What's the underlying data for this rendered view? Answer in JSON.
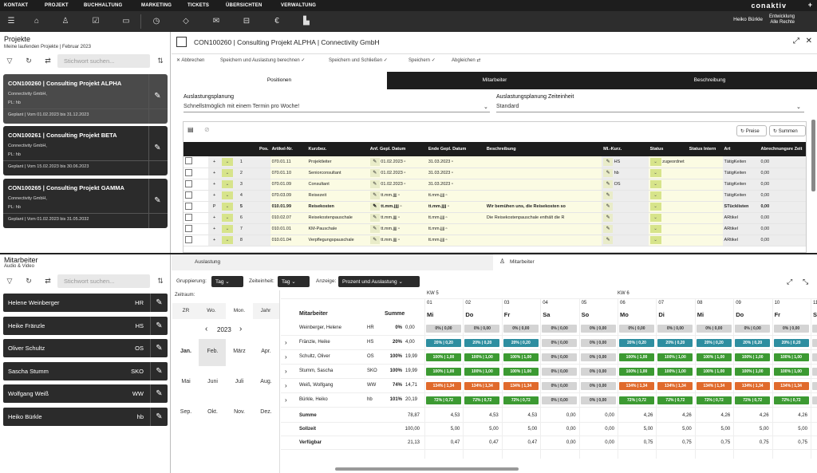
{
  "nav": {
    "items": [
      "KONTAKT",
      "PROJEKT",
      "BUCHHALTUNG",
      "MARKETING",
      "TICKETS",
      "ÜBERSICHTEN",
      "VERWALTUNG"
    ],
    "logo": "conaktiv"
  },
  "user": {
    "name": "Heiko Bürkle",
    "role1": "Entwicklung",
    "role2": "Alle Rechte"
  },
  "projects": {
    "title": "Projekte",
    "subtitle": "Meine laufenden Projekte | Februar 2023",
    "search_placeholder": "Stichwort suchen...",
    "items": [
      {
        "head": "CON100260 | Consulting Projekt ALPHA",
        "company": "Connectivity GmbH,",
        "pl": "PL: hb",
        "plan": "Geplant | Vom 01.02.2023 bis 31.12.2023"
      },
      {
        "head": "CON100261 | Consulting Projekt BETA",
        "company": "Connectivity GmbH,",
        "pl": "PL: hb",
        "plan": "Geplant | Vom 15.02.2023 bis 30.06.2023"
      },
      {
        "head": "CON100265 | Consulting Projekt GAMMA",
        "company": "Connectivity GmbH,",
        "pl": "PL: hb",
        "plan": "Geplant | Vom 01.02.2023 bis 31.05.2032"
      }
    ]
  },
  "main": {
    "title": "CON100260 | Consulting Projekt ALPHA | Connectivity GmbH",
    "actions": [
      "Abbrechen",
      "Speichern und Auslastung berechnen",
      "Speichern und Schließen",
      "Speichern",
      "Abgleichen"
    ],
    "tabs": [
      "Positionen",
      "Mitarbeiter",
      "Beschreibung"
    ],
    "ausl_label": "Auslastungsplanung",
    "ausl_value": "Schnellstmöglich mit einem Termin pro Woche!",
    "zeit_label": "Auslastungsplanung Zeiteinheit",
    "zeit_value": "Standard",
    "btn_preise": "Preise",
    "btn_summen": "Summen",
    "cols": [
      "Pos.",
      "Artikel-Nr.",
      "Kurzbez.",
      "Anf. Gepl. Datum",
      "Ende Gepl. Datum",
      "Beschreibung",
      "MI.-Kurz.",
      "Status",
      "Status Intern",
      "Art",
      "Abrechnungsre Zeit"
    ],
    "rows": [
      [
        "+",
        "1",
        "070.01.11",
        "Projektleiter",
        "01.02.2023",
        "31.03.2023",
        "",
        "HS",
        "zugeordnet",
        "TätigKeiten",
        "0,00"
      ],
      [
        "+",
        "2",
        "070.01.10",
        "Seniorconsultant",
        "01.02.2023",
        "31.03.2023",
        "",
        "hb",
        "",
        "TätigKeiten",
        "0,00"
      ],
      [
        "+",
        "3",
        "070.01.09",
        "Consultant",
        "01.02.2023",
        "31.03.2023",
        "",
        "OS",
        "",
        "TätigKeiten",
        "0,00"
      ],
      [
        "+",
        "4",
        "070.03.09",
        "Reisezeit",
        "tt.mm.jjjj",
        "tt.mm.jjjj",
        "",
        "",
        "",
        "TätigKeiten",
        "0,00"
      ],
      [
        "P",
        "5",
        "010.01.99",
        "Reisekosten",
        "tt.mm.jjjj",
        "tt.mm.jjjj",
        "Wir bemühen uns, die Reisekosten so",
        "",
        "",
        "STücklisten",
        "0,00"
      ],
      [
        "+",
        "6",
        "010.02.07",
        "Reisekostenpauschale",
        "tt.mm.jjjj",
        "tt.mm.jjjj",
        "Die Reisekostenpauschale enthält die R",
        "",
        "",
        "ARtikel",
        "0,00"
      ],
      [
        "+",
        "7",
        "010.01.01",
        "KM-Pauschale",
        "tt.mm.jjjj",
        "tt.mm.jjjj",
        "",
        "",
        "",
        "ARtikel",
        "0,00"
      ],
      [
        "+",
        "8",
        "010.01.04",
        "Verpflegungspauschale",
        "tt.mm.jjjj",
        "tt.mm.jjjj",
        "",
        "",
        "",
        "ARtikel",
        "0,00"
      ]
    ]
  },
  "staff": {
    "title": "Mitarbeiter",
    "subtitle": "Audio & Video",
    "search_placeholder": "Stichwort suchen...",
    "items": [
      {
        "name": "Helene Weinberger",
        "code": "HR"
      },
      {
        "name": "Heike Fränzle",
        "code": "HS"
      },
      {
        "name": "Oliver Schultz",
        "code": "OS"
      },
      {
        "name": "Sascha Stumm",
        "code": "SKO"
      },
      {
        "name": "Wolfgang Weiß",
        "code": "WW"
      },
      {
        "name": "Heiko Bürkle",
        "code": "hb"
      }
    ]
  },
  "bottom": {
    "tab1": "Auslastung",
    "tab2": "Mitarbeiter",
    "grp_label": "Gruppierung:",
    "grp_val": "Tag",
    "ze_label": "Zeiteinheit:",
    "ze_val": "Tag",
    "anz_label": "Anzeige:",
    "anz_val": "Prozent und Auslastung",
    "zeitraum": "Zeitraum:",
    "ztabs": [
      "ZR",
      "Wo.",
      "Mon.",
      "Jahr"
    ],
    "year": "2023",
    "months": [
      "Jan.",
      "Feb.",
      "März",
      "Apr.",
      "Mai",
      "Juni",
      "Juli",
      "Aug.",
      "Sep.",
      "Okt.",
      "Nov.",
      "Dez."
    ],
    "kw": [
      "KW 5",
      "KW 6"
    ],
    "days": [
      "01",
      "02",
      "03",
      "04",
      "05",
      "06",
      "07",
      "08",
      "09",
      "10",
      "11"
    ],
    "dnames": [
      "Mi",
      "Do",
      "Fr",
      "Sa",
      "So",
      "Mo",
      "Di",
      "Mi",
      "Do",
      "Fr",
      "Sa"
    ],
    "col_ma": "Mitarbeiter",
    "col_sum": "Summe",
    "people": [
      {
        "name": "Weinberger, Helene",
        "code": "HR",
        "pct": "0%",
        "val": "0,00",
        "cells": [
          "gry:0%|0,00"
        ]
      },
      {
        "name": "Fränzle, Heike",
        "code": "HS",
        "pct": "20%",
        "val": "4,00",
        "c": "teal",
        "cell": "20%|0,20"
      },
      {
        "name": "Schultz, Oliver",
        "code": "OS",
        "pct": "100%",
        "val": "19,99",
        "c": "grn",
        "cell": "100%|1,00"
      },
      {
        "name": "Stumm, Sascha",
        "code": "SKO",
        "pct": "100%",
        "val": "19,99",
        "c": "grn",
        "cell": "100%|1,00"
      },
      {
        "name": "Weiß, Wolfgang",
        "code": "WW",
        "pct": "74%",
        "val": "14,71",
        "c": "org",
        "cell": "134%|1,34"
      },
      {
        "name": "Bürkle, Heiko",
        "code": "hb",
        "pct": "101%",
        "val": "20,19",
        "c": "grn",
        "cell": "72%|0,72"
      }
    ],
    "sum_rows": [
      {
        "label": "Summe",
        "total": "78,87",
        "vals": [
          "4,53",
          "4,53",
          "4,53",
          "0,00",
          "0,00",
          "4,26",
          "4,26",
          "4,26",
          "4,26",
          "4,26",
          ""
        ]
      },
      {
        "label": "Sollzeit",
        "total": "100,00",
        "vals": [
          "5,00",
          "5,00",
          "5,00",
          "0,00",
          "0,00",
          "5,00",
          "5,00",
          "5,00",
          "5,00",
          "5,00",
          ""
        ]
      },
      {
        "label": "Verfügbar",
        "total": "21,13",
        "vals": [
          "0,47",
          "0,47",
          "0,47",
          "0,00",
          "0,00",
          "0,75",
          "0,75",
          "0,75",
          "0,75",
          "0,75",
          ""
        ]
      }
    ]
  }
}
